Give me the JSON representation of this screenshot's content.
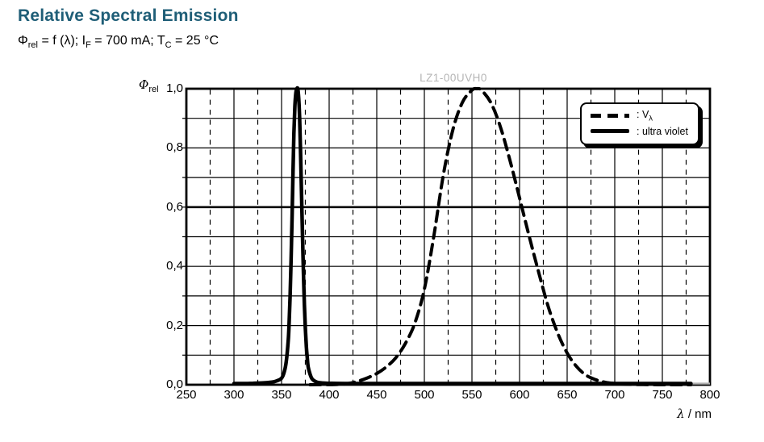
{
  "page": {
    "title": "Relative Spectral Emission",
    "title_color": "#1f5e77",
    "background": "#ffffff"
  },
  "subtitle": {
    "phi": "Φ",
    "phi_sub": "rel",
    "seg1": " = f (λ); I",
    "i_sub": "F",
    "seg2": " = 700 mA; T",
    "t_sub": "C",
    "seg3": " = 25 °C"
  },
  "watermark": "LZ1-00UVH0",
  "legend": {
    "items": [
      {
        "style": "dashed",
        "label": ": V",
        "label_sub": "λ"
      },
      {
        "style": "solid",
        "label": ": ultra violet",
        "label_sub": ""
      }
    ]
  },
  "axes": {
    "y_label": {
      "symbol": "Φ",
      "sub": "rel"
    },
    "x_label": {
      "symbol": "λ",
      "unit": " / nm"
    },
    "x_ticks": [
      "250",
      "300",
      "350",
      "400",
      "450",
      "500",
      "550",
      "600",
      "650",
      "700",
      "750",
      "800"
    ],
    "y_ticks": [
      "0,0",
      "0,2",
      "0,4",
      "0,6",
      "0,8",
      "1,0"
    ]
  },
  "chart_data": {
    "type": "line",
    "title": "Relative Spectral Emission",
    "xlabel": "λ / nm",
    "ylabel": "Φrel",
    "xlim": [
      250,
      800
    ],
    "ylim": [
      0,
      1
    ],
    "x_major_grid_step": 50,
    "x_minor_grid_step": 25,
    "y_grid_step": 0.1,
    "emphasized_y_gridline": 0.6,
    "grid_color": "#000000",
    "legend_position": "top-right",
    "watermark": "LZ1-00UVH0",
    "series": [
      {
        "name": "Vλ",
        "style": "dashed",
        "color": "#000000",
        "points": [
          [
            380,
            0.0001
          ],
          [
            390,
            0.0002
          ],
          [
            400,
            0.0004
          ],
          [
            410,
            0.0012
          ],
          [
            420,
            0.004
          ],
          [
            430,
            0.0116
          ],
          [
            440,
            0.023
          ],
          [
            450,
            0.038
          ],
          [
            460,
            0.06
          ],
          [
            470,
            0.091
          ],
          [
            480,
            0.139
          ],
          [
            490,
            0.208
          ],
          [
            500,
            0.323
          ],
          [
            510,
            0.503
          ],
          [
            520,
            0.71
          ],
          [
            530,
            0.862
          ],
          [
            540,
            0.954
          ],
          [
            550,
            0.995
          ],
          [
            555,
            1.0
          ],
          [
            560,
            0.995
          ],
          [
            570,
            0.952
          ],
          [
            580,
            0.87
          ],
          [
            590,
            0.757
          ],
          [
            600,
            0.631
          ],
          [
            610,
            0.503
          ],
          [
            620,
            0.381
          ],
          [
            630,
            0.265
          ],
          [
            640,
            0.175
          ],
          [
            650,
            0.107
          ],
          [
            660,
            0.061
          ],
          [
            670,
            0.032
          ],
          [
            680,
            0.017
          ],
          [
            690,
            0.0082
          ],
          [
            700,
            0.0041
          ],
          [
            710,
            0.0021
          ],
          [
            720,
            0.001
          ],
          [
            730,
            0.0005
          ],
          [
            740,
            0.00025
          ],
          [
            750,
            0.0001
          ],
          [
            760,
            6e-05
          ],
          [
            770,
            3e-05
          ],
          [
            780,
            2e-05
          ]
        ]
      },
      {
        "name": "ultra violet",
        "style": "solid",
        "color": "#000000",
        "points": [
          [
            300,
            0.004
          ],
          [
            310,
            0.004
          ],
          [
            320,
            0.005
          ],
          [
            330,
            0.006
          ],
          [
            340,
            0.009
          ],
          [
            345,
            0.013
          ],
          [
            350,
            0.022
          ],
          [
            353,
            0.045
          ],
          [
            355,
            0.08
          ],
          [
            357,
            0.15
          ],
          [
            358,
            0.21
          ],
          [
            359,
            0.3
          ],
          [
            360,
            0.42
          ],
          [
            361,
            0.56
          ],
          [
            362,
            0.72
          ],
          [
            363,
            0.85
          ],
          [
            364,
            0.94
          ],
          [
            365,
            0.985
          ],
          [
            366,
            1.0
          ],
          [
            367,
            1.0
          ],
          [
            368,
            0.97
          ],
          [
            369,
            0.9
          ],
          [
            370,
            0.78
          ],
          [
            371,
            0.64
          ],
          [
            372,
            0.5
          ],
          [
            373,
            0.38
          ],
          [
            374,
            0.27
          ],
          [
            375,
            0.19
          ],
          [
            376,
            0.13
          ],
          [
            377,
            0.09
          ],
          [
            378,
            0.06
          ],
          [
            380,
            0.035
          ],
          [
            382,
            0.02
          ],
          [
            385,
            0.012
          ],
          [
            388,
            0.008
          ],
          [
            392,
            0.006
          ],
          [
            400,
            0.005
          ],
          [
            420,
            0.004
          ],
          [
            450,
            0.004
          ],
          [
            500,
            0.004
          ],
          [
            550,
            0.004
          ],
          [
            600,
            0.004
          ],
          [
            650,
            0.004
          ],
          [
            700,
            0.004
          ],
          [
            750,
            0.004
          ],
          [
            780,
            0.004
          ]
        ]
      }
    ],
    "annotations": {
      "gray_baseline_segment_nm": [
        780,
        800
      ],
      "gray_segment_color": "#b0b0b0"
    }
  }
}
